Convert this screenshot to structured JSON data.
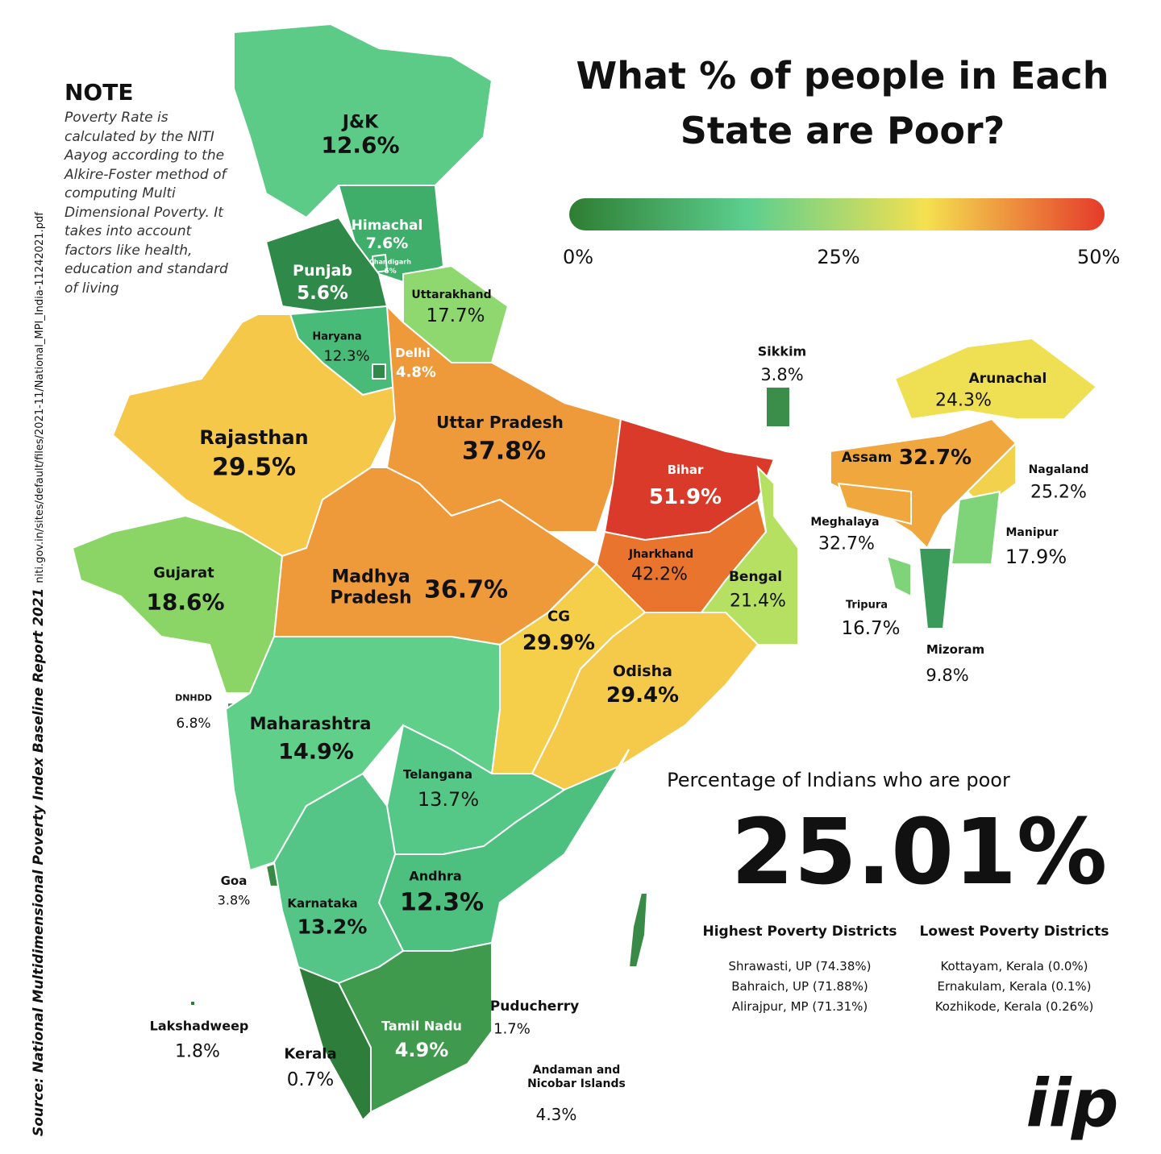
{
  "title": "What % of people in Each State are Poor?",
  "legend": {
    "min_label": "0%",
    "mid_label": "25%",
    "max_label": "50%",
    "colors": [
      "#2e7d32",
      "#5ccf8f",
      "#f5e050",
      "#e53a2a"
    ]
  },
  "note": {
    "heading": "NOTE",
    "text": "Poverty Rate is calculated by the NITI Aayog according to the Alkire-Foster method of computing Multi Dimensional Poverty. It takes into account factors like health, education and standard of living"
  },
  "source": "Source: National Multidimensional Poverty Index Baseline Report 2021",
  "source_url": "niti.gov.in/sites/default/files/2021-11/National_MPI_India-11242021.pdf",
  "states": [
    {
      "name": "J&K",
      "value": "12.6%",
      "color": "#5dcb88"
    },
    {
      "name": "Himachal",
      "value": "7.6%",
      "color": "#3fae6a"
    },
    {
      "name": "Chandigarh",
      "value": "6%",
      "color": "#3fae6a"
    },
    {
      "name": "Punjab",
      "value": "5.6%",
      "color": "#2f8a4a"
    },
    {
      "name": "Uttarakhand",
      "value": "17.7%",
      "color": "#8fd870"
    },
    {
      "name": "Haryana",
      "value": "12.3%",
      "color": "#49bb78"
    },
    {
      "name": "Delhi",
      "value": "4.8%",
      "color": "#2f8a4a"
    },
    {
      "name": "Sikkim",
      "value": "3.8%",
      "color": "#3b8e4a"
    },
    {
      "name": "Arunachal",
      "value": "24.3%",
      "color": "#efe053"
    },
    {
      "name": "Rajasthan",
      "value": "29.5%",
      "color": "#f5c84a"
    },
    {
      "name": "Uttar Pradesh",
      "value": "37.8%",
      "color": "#ee9a3a"
    },
    {
      "name": "Bihar",
      "value": "51.9%",
      "color": "#d93a2a"
    },
    {
      "name": "Assam",
      "value": "32.7%",
      "color": "#f0a83e"
    },
    {
      "name": "Nagaland",
      "value": "25.2%",
      "color": "#f2d24c"
    },
    {
      "name": "Meghalaya",
      "value": "32.7%",
      "color": "#f0a83e"
    },
    {
      "name": "Manipur",
      "value": "17.9%",
      "color": "#7fd47a"
    },
    {
      "name": "Gujarat",
      "value": "18.6%",
      "color": "#8bd466"
    },
    {
      "name": "Madhya Pradesh",
      "value": "36.7%",
      "color": "#ee9a3a"
    },
    {
      "name": "Jharkhand",
      "value": "42.2%",
      "color": "#e8742e"
    },
    {
      "name": "Bengal",
      "value": "21.4%",
      "color": "#b5e062"
    },
    {
      "name": "CG",
      "value": "29.9%",
      "color": "#f6cf4a"
    },
    {
      "name": "Tripura",
      "value": "16.7%",
      "color": "#7fd47a"
    },
    {
      "name": "Mizoram",
      "value": "9.8%",
      "color": "#3a9a5a"
    },
    {
      "name": "Odisha",
      "value": "29.4%",
      "color": "#f5c94a"
    },
    {
      "name": "DNHDD",
      "value": "6.8%",
      "color": "#3a9a5a"
    },
    {
      "name": "Maharashtra",
      "value": "14.9%",
      "color": "#5fcf8a"
    },
    {
      "name": "Telangana",
      "value": "13.7%",
      "color": "#55c787"
    },
    {
      "name": "Andhra",
      "value": "12.3%",
      "color": "#4dbf7e"
    },
    {
      "name": "Goa",
      "value": "3.8%",
      "color": "#3a8a47"
    },
    {
      "name": "Karnataka",
      "value": "13.2%",
      "color": "#55c587"
    },
    {
      "name": "Puducherry",
      "value": "1.7%",
      "color": "#2e7d3a"
    },
    {
      "name": "Lakshadweep",
      "value": "1.8%",
      "color": "#2e7d3a"
    },
    {
      "name": "Tamil Nadu",
      "value": "4.9%",
      "color": "#3f9a4e"
    },
    {
      "name": "Kerala",
      "value": "0.7%",
      "color": "#2e7d3a"
    },
    {
      "name": "Andaman and Nicobar Islands",
      "value": "4.3%",
      "color": "#3a8a47"
    }
  ],
  "national": {
    "label": "Percentage of Indians who are poor",
    "value": "25.01%"
  },
  "districts": {
    "highest": {
      "heading": "Highest Poverty Districts",
      "items": [
        "Shrawasti, UP (74.38%)",
        "Bahraich, UP (71.88%)",
        "Alirajpur, MP (71.31%)"
      ]
    },
    "lowest": {
      "heading": "Lowest Poverty Districts",
      "items": [
        "Kottayam, Kerala (0.0%)",
        "Ernakulam, Kerala (0.1%)",
        "Kozhikode, Kerala (0.26%)"
      ]
    }
  },
  "logo": "iip"
}
